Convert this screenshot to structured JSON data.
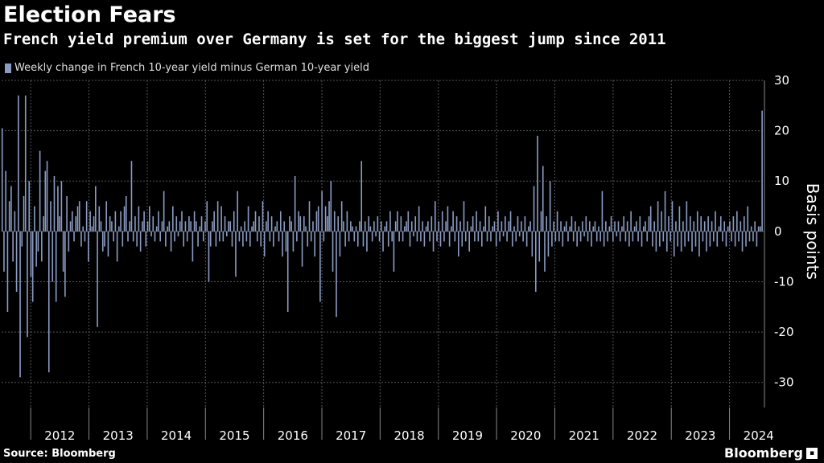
{
  "header": {
    "title": "Election Fears",
    "subtitle": "French yield premium over Germany is set for the biggest jump since 2011"
  },
  "footer": {
    "source": "Source: Bloomberg",
    "logo": "Bloomberg"
  },
  "colors": {
    "bar": "#8a9bc4",
    "grid": "#555555",
    "background": "#000000"
  },
  "chart_data": {
    "type": "bar",
    "title": "Election Fears",
    "subtitle": "French yield premium over Germany is set for the biggest jump since 2011",
    "legend": [
      "Weekly change in French 10-year yield minus German 10-year yield"
    ],
    "ylabel": "Basis points",
    "xlabel": "",
    "ylim": [
      -35,
      30
    ],
    "yticks": [
      30,
      20,
      10,
      0,
      -10,
      -20,
      -30
    ],
    "year_labels": [
      "2012",
      "2013",
      "2014",
      "2015",
      "2016",
      "2017",
      "2018",
      "2019",
      "2020",
      "2021",
      "2022",
      "2023",
      "2024"
    ],
    "x_start": 2011.5,
    "x_end": 2024.6,
    "series": [
      {
        "name": "Weekly change in French 10-year yield minus German 10-year yield",
        "values": [
          20.5,
          -8,
          12,
          -16,
          6,
          9,
          -6,
          4,
          -12,
          27,
          -29,
          -3,
          7,
          27,
          -21,
          10,
          -9,
          -14,
          5,
          -7,
          -4,
          16,
          -6,
          3,
          12,
          14,
          -28,
          6,
          -10,
          11,
          -14,
          9,
          3,
          10,
          -8,
          -13,
          7,
          -4,
          2,
          4,
          -2,
          3,
          5,
          6,
          -3,
          1,
          -2,
          6,
          -6,
          4,
          1,
          3,
          9,
          -19,
          5,
          2,
          -4,
          -3,
          6,
          -5,
          3,
          2,
          -2,
          4,
          -6,
          1,
          4,
          -3,
          5,
          7,
          -2,
          2,
          14,
          -2,
          3,
          -3,
          5,
          -4,
          2,
          4,
          -3,
          2,
          5,
          -1,
          3,
          -2,
          1,
          4,
          -2,
          2,
          8,
          -3,
          1,
          2,
          -4,
          5,
          -2,
          3,
          -1,
          2,
          4,
          -3,
          2,
          -2,
          3,
          2,
          -6,
          4,
          2,
          -3,
          1,
          3,
          -2,
          2,
          6,
          -10,
          -3,
          2,
          4,
          -3,
          6,
          -2,
          5,
          -2,
          3,
          -1,
          2,
          2,
          -3,
          4,
          -9,
          8,
          -2,
          1,
          -3,
          2,
          -2,
          5,
          -3,
          1,
          2,
          4,
          -2,
          3,
          -3,
          6,
          -5,
          2,
          4,
          -2,
          3,
          -3,
          1,
          2,
          -2,
          4,
          -5,
          2,
          -4,
          -16,
          3,
          2,
          -4,
          11,
          -2,
          4,
          3,
          -7,
          3,
          1,
          -3,
          6,
          -2,
          2,
          -5,
          4,
          5,
          -14,
          8,
          -2,
          5,
          3,
          6,
          10,
          -8,
          4,
          -17,
          3,
          -5,
          6,
          2,
          -3,
          4,
          -2,
          2,
          1,
          -2,
          1,
          -3,
          2,
          14,
          -3,
          2,
          -4,
          3,
          1,
          -2,
          2,
          -1,
          3,
          -2,
          2,
          -4,
          1,
          2,
          -3,
          4,
          -2,
          -8,
          2,
          4,
          -2,
          3,
          -2,
          1,
          2,
          4,
          -3,
          2,
          -1,
          3,
          -2,
          5,
          -2,
          2,
          -3,
          1,
          2,
          -2,
          3,
          -4,
          6,
          -2,
          2,
          -3,
          4,
          -2,
          2,
          5,
          -3,
          1,
          4,
          -2,
          3,
          -5,
          2,
          -3,
          6,
          -2,
          2,
          -4,
          1,
          3,
          -2,
          4,
          -2,
          2,
          -3,
          1,
          5,
          -2,
          3,
          -2,
          1,
          2,
          -3,
          4,
          -2,
          2,
          -1,
          3,
          -2,
          2,
          4,
          -3,
          1,
          -2,
          3,
          -1,
          2,
          -2,
          3,
          -3,
          1,
          2,
          -5,
          9,
          -12,
          19,
          -6,
          4,
          13,
          -8,
          3,
          -5,
          10,
          -3,
          2,
          -2,
          4,
          -2,
          2,
          -3,
          1,
          2,
          -2,
          1,
          3,
          -2,
          2,
          -3,
          1,
          -2,
          2,
          -1,
          3,
          -2,
          2,
          -3,
          1,
          2,
          -2,
          1,
          -2,
          8,
          -3,
          2,
          -2,
          1,
          3,
          -2,
          2,
          -1,
          2,
          -2,
          1,
          3,
          -2,
          2,
          -3,
          4,
          -2,
          1,
          2,
          -2,
          3,
          -3,
          1,
          2,
          -2,
          3,
          5,
          -3,
          2,
          -4,
          6,
          -3,
          4,
          -2,
          8,
          -4,
          3,
          -2,
          6,
          -5,
          2,
          -3,
          5,
          -4,
          2,
          -3,
          6,
          -2,
          3,
          -4,
          2,
          -3,
          4,
          -5,
          3,
          -2,
          2,
          -4,
          3,
          -3,
          2,
          -2,
          4,
          -3,
          1,
          3,
          -2,
          2,
          -3,
          1,
          2,
          -2,
          3,
          -3,
          4,
          -2,
          2,
          -4,
          3,
          -3,
          5,
          -2,
          1,
          -2,
          2,
          -3,
          1,
          1,
          24
        ]
      }
    ]
  }
}
